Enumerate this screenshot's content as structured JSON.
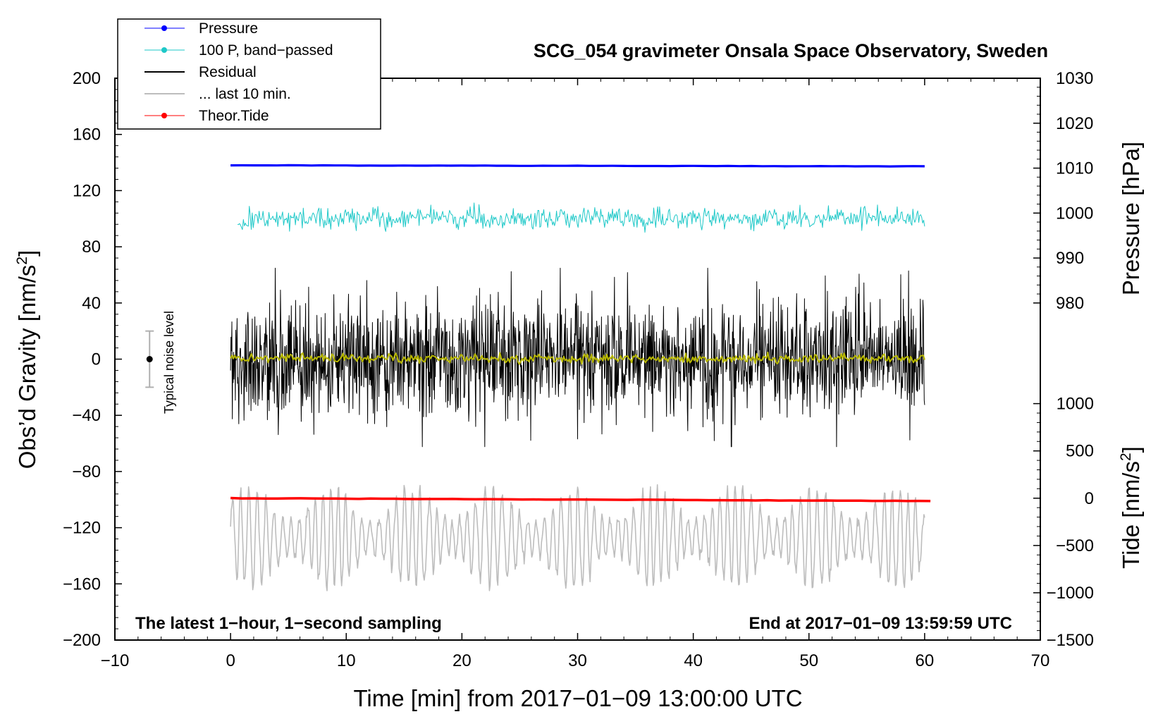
{
  "chart_data": {
    "type": "line",
    "title": "SCG_054 gravimeter Onsala Space Observatory, Sweden",
    "xlabel": "Time [min] from 2017−01−09 13:00:00 UTC",
    "ylabel_left_main": "Obs’d Gravity [nm/s",
    "ylabel_left_sup": "2",
    "ylabel_left_end": "]",
    "ylabel_right_pressure": "Pressure [hPa]",
    "ylabel_right_tide_main": "Tide [nm/s",
    "ylabel_right_tide_sup": "2",
    "ylabel_right_tide_end": "]",
    "xlim": [
      -10,
      70
    ],
    "ylim": [
      -200,
      200
    ],
    "x_ticks": [
      -10,
      0,
      10,
      20,
      30,
      40,
      50,
      60,
      70
    ],
    "x_tick_labels": [
      "−10",
      "0",
      "10",
      "20",
      "30",
      "40",
      "50",
      "60",
      "70"
    ],
    "y_ticks": [
      200,
      160,
      120,
      80,
      40,
      0,
      -40,
      -80,
      -120,
      -160,
      -200
    ],
    "y_tick_labels": [
      "200",
      "160",
      "120",
      "80",
      "40",
      "0",
      "−40",
      "−80",
      "−120",
      "−160",
      "−200"
    ],
    "pressure_axis": {
      "ticks": [
        1030,
        1020,
        1010,
        1000,
        990,
        980
      ],
      "tick_labels": [
        "1030",
        "1020",
        "1010",
        "1000",
        "990",
        "980"
      ],
      "maps_to_left": [
        [
          980,
          40
        ],
        [
          1030,
          200
        ]
      ]
    },
    "tide_axis": {
      "ticks": [
        1000,
        500,
        0,
        -500,
        -1000,
        -1500
      ],
      "tick_labels": [
        "1000",
        "500",
        "0",
        "−500",
        "−1000",
        "−1500"
      ],
      "maps_to_left": [
        [
          -1500,
          -200
        ],
        [
          0,
          -99
        ]
      ]
    },
    "series": [
      {
        "name": "Pressure",
        "legend_label": "Pressure",
        "color": "#0000ff",
        "kind": "flat",
        "x_range": [
          0,
          60
        ],
        "y_start": 138,
        "y_end": 137.3,
        "center_left_axis": 138,
        "amplitude": 0,
        "width": 3.2
      },
      {
        "name": "100 P, band-passed",
        "legend_label": "100 P, band−passed",
        "color": "#1ec8c8",
        "kind": "noise",
        "x_range": [
          0.6,
          60
        ],
        "center_left_axis": 100,
        "amplitude": 8,
        "width": 1
      },
      {
        "name": "Residual",
        "legend_label": "Residual",
        "color": "#000000",
        "kind": "noise",
        "x_range": [
          0,
          60
        ],
        "center_left_axis": 0,
        "amplitude": 48,
        "width": 1
      },
      {
        "name": "Residual smoothed",
        "legend_label": "",
        "color": "#b8b800",
        "kind": "noise",
        "x_range": [
          0,
          60
        ],
        "center_left_axis": 0.5,
        "amplitude": 1.5,
        "width": 2
      },
      {
        "name": "... last 10 min.",
        "legend_label": "... last 10 min.",
        "color": "#bdbdbd",
        "kind": "oscillation",
        "x_range": [
          0,
          60
        ],
        "center_left_axis": -127,
        "amplitude": 34,
        "width": 1.6
      },
      {
        "name": "Theor.Tide",
        "legend_label": "Theor.Tide",
        "color": "#ff0000",
        "kind": "flat",
        "x_range": [
          0,
          60.5
        ],
        "y_start": -99,
        "y_end": -101,
        "center_left_axis": -100,
        "amplitude": 0,
        "width": 3.5
      }
    ],
    "noise_level_label": "Typical noise level",
    "noise_level": {
      "x": -7,
      "center": 0,
      "low": -20,
      "high": 20
    },
    "annotation_left": "The latest 1−hour, 1−second sampling",
    "annotation_right": "End at 2017−01−09 13:59:59 UTC",
    "legend_position": "top-left"
  }
}
